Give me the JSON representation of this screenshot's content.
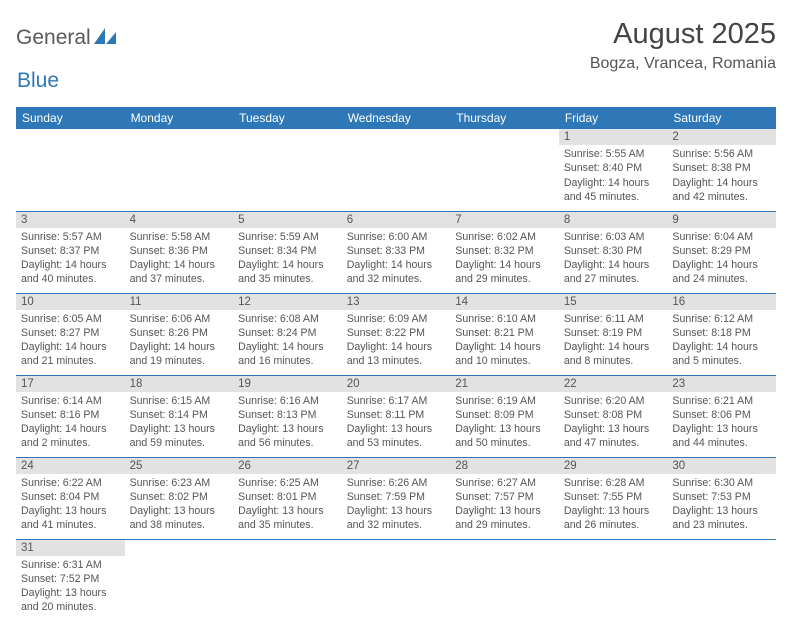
{
  "brand": {
    "general": "General",
    "blue": "Blue"
  },
  "header": {
    "month_title": "August 2025",
    "location": "Bogza, Vrancea, Romania"
  },
  "colors": {
    "header_bg": "#2f78b7",
    "header_text": "#ffffff",
    "daynum_bg": "#e2e2e2",
    "text": "#5a5a5a",
    "border": "#2f78b7"
  },
  "day_names": [
    "Sunday",
    "Monday",
    "Tuesday",
    "Wednesday",
    "Thursday",
    "Friday",
    "Saturday"
  ],
  "weeks": [
    [
      null,
      null,
      null,
      null,
      null,
      {
        "n": "1",
        "sr": "Sunrise: 5:55 AM",
        "ss": "Sunset: 8:40 PM",
        "d1": "Daylight: 14 hours",
        "d2": "and 45 minutes."
      },
      {
        "n": "2",
        "sr": "Sunrise: 5:56 AM",
        "ss": "Sunset: 8:38 PM",
        "d1": "Daylight: 14 hours",
        "d2": "and 42 minutes."
      }
    ],
    [
      {
        "n": "3",
        "sr": "Sunrise: 5:57 AM",
        "ss": "Sunset: 8:37 PM",
        "d1": "Daylight: 14 hours",
        "d2": "and 40 minutes."
      },
      {
        "n": "4",
        "sr": "Sunrise: 5:58 AM",
        "ss": "Sunset: 8:36 PM",
        "d1": "Daylight: 14 hours",
        "d2": "and 37 minutes."
      },
      {
        "n": "5",
        "sr": "Sunrise: 5:59 AM",
        "ss": "Sunset: 8:34 PM",
        "d1": "Daylight: 14 hours",
        "d2": "and 35 minutes."
      },
      {
        "n": "6",
        "sr": "Sunrise: 6:00 AM",
        "ss": "Sunset: 8:33 PM",
        "d1": "Daylight: 14 hours",
        "d2": "and 32 minutes."
      },
      {
        "n": "7",
        "sr": "Sunrise: 6:02 AM",
        "ss": "Sunset: 8:32 PM",
        "d1": "Daylight: 14 hours",
        "d2": "and 29 minutes."
      },
      {
        "n": "8",
        "sr": "Sunrise: 6:03 AM",
        "ss": "Sunset: 8:30 PM",
        "d1": "Daylight: 14 hours",
        "d2": "and 27 minutes."
      },
      {
        "n": "9",
        "sr": "Sunrise: 6:04 AM",
        "ss": "Sunset: 8:29 PM",
        "d1": "Daylight: 14 hours",
        "d2": "and 24 minutes."
      }
    ],
    [
      {
        "n": "10",
        "sr": "Sunrise: 6:05 AM",
        "ss": "Sunset: 8:27 PM",
        "d1": "Daylight: 14 hours",
        "d2": "and 21 minutes."
      },
      {
        "n": "11",
        "sr": "Sunrise: 6:06 AM",
        "ss": "Sunset: 8:26 PM",
        "d1": "Daylight: 14 hours",
        "d2": "and 19 minutes."
      },
      {
        "n": "12",
        "sr": "Sunrise: 6:08 AM",
        "ss": "Sunset: 8:24 PM",
        "d1": "Daylight: 14 hours",
        "d2": "and 16 minutes."
      },
      {
        "n": "13",
        "sr": "Sunrise: 6:09 AM",
        "ss": "Sunset: 8:22 PM",
        "d1": "Daylight: 14 hours",
        "d2": "and 13 minutes."
      },
      {
        "n": "14",
        "sr": "Sunrise: 6:10 AM",
        "ss": "Sunset: 8:21 PM",
        "d1": "Daylight: 14 hours",
        "d2": "and 10 minutes."
      },
      {
        "n": "15",
        "sr": "Sunrise: 6:11 AM",
        "ss": "Sunset: 8:19 PM",
        "d1": "Daylight: 14 hours",
        "d2": "and 8 minutes."
      },
      {
        "n": "16",
        "sr": "Sunrise: 6:12 AM",
        "ss": "Sunset: 8:18 PM",
        "d1": "Daylight: 14 hours",
        "d2": "and 5 minutes."
      }
    ],
    [
      {
        "n": "17",
        "sr": "Sunrise: 6:14 AM",
        "ss": "Sunset: 8:16 PM",
        "d1": "Daylight: 14 hours",
        "d2": "and 2 minutes."
      },
      {
        "n": "18",
        "sr": "Sunrise: 6:15 AM",
        "ss": "Sunset: 8:14 PM",
        "d1": "Daylight: 13 hours",
        "d2": "and 59 minutes."
      },
      {
        "n": "19",
        "sr": "Sunrise: 6:16 AM",
        "ss": "Sunset: 8:13 PM",
        "d1": "Daylight: 13 hours",
        "d2": "and 56 minutes."
      },
      {
        "n": "20",
        "sr": "Sunrise: 6:17 AM",
        "ss": "Sunset: 8:11 PM",
        "d1": "Daylight: 13 hours",
        "d2": "and 53 minutes."
      },
      {
        "n": "21",
        "sr": "Sunrise: 6:19 AM",
        "ss": "Sunset: 8:09 PM",
        "d1": "Daylight: 13 hours",
        "d2": "and 50 minutes."
      },
      {
        "n": "22",
        "sr": "Sunrise: 6:20 AM",
        "ss": "Sunset: 8:08 PM",
        "d1": "Daylight: 13 hours",
        "d2": "and 47 minutes."
      },
      {
        "n": "23",
        "sr": "Sunrise: 6:21 AM",
        "ss": "Sunset: 8:06 PM",
        "d1": "Daylight: 13 hours",
        "d2": "and 44 minutes."
      }
    ],
    [
      {
        "n": "24",
        "sr": "Sunrise: 6:22 AM",
        "ss": "Sunset: 8:04 PM",
        "d1": "Daylight: 13 hours",
        "d2": "and 41 minutes."
      },
      {
        "n": "25",
        "sr": "Sunrise: 6:23 AM",
        "ss": "Sunset: 8:02 PM",
        "d1": "Daylight: 13 hours",
        "d2": "and 38 minutes."
      },
      {
        "n": "26",
        "sr": "Sunrise: 6:25 AM",
        "ss": "Sunset: 8:01 PM",
        "d1": "Daylight: 13 hours",
        "d2": "and 35 minutes."
      },
      {
        "n": "27",
        "sr": "Sunrise: 6:26 AM",
        "ss": "Sunset: 7:59 PM",
        "d1": "Daylight: 13 hours",
        "d2": "and 32 minutes."
      },
      {
        "n": "28",
        "sr": "Sunrise: 6:27 AM",
        "ss": "Sunset: 7:57 PM",
        "d1": "Daylight: 13 hours",
        "d2": "and 29 minutes."
      },
      {
        "n": "29",
        "sr": "Sunrise: 6:28 AM",
        "ss": "Sunset: 7:55 PM",
        "d1": "Daylight: 13 hours",
        "d2": "and 26 minutes."
      },
      {
        "n": "30",
        "sr": "Sunrise: 6:30 AM",
        "ss": "Sunset: 7:53 PM",
        "d1": "Daylight: 13 hours",
        "d2": "and 23 minutes."
      }
    ],
    [
      {
        "n": "31",
        "sr": "Sunrise: 6:31 AM",
        "ss": "Sunset: 7:52 PM",
        "d1": "Daylight: 13 hours",
        "d2": "and 20 minutes."
      },
      null,
      null,
      null,
      null,
      null,
      null
    ]
  ]
}
